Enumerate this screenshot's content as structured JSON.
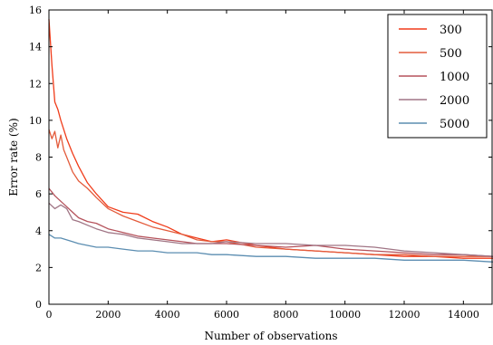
{
  "chart_data": {
    "type": "line",
    "xlabel": "Number of observations",
    "ylabel": "Error rate (%)",
    "xlim": [
      0,
      15000
    ],
    "ylim": [
      0,
      16
    ],
    "xticks": [
      0,
      2000,
      4000,
      6000,
      8000,
      10000,
      12000,
      14000
    ],
    "yticks": [
      0,
      2,
      4,
      6,
      8,
      10,
      12,
      14,
      16
    ],
    "grid": false,
    "legend_position": "top-right",
    "series": [
      {
        "name": "300",
        "color": "#f03c1a",
        "x": [
          0,
          100,
          200,
          300,
          400,
          600,
          800,
          1000,
          1300,
          1600,
          2000,
          2500,
          3000,
          3500,
          4000,
          4500,
          5000,
          5500,
          6000,
          7000,
          8000,
          9000,
          10000,
          11000,
          12000,
          13000,
          14000,
          15000
        ],
        "y": [
          15.5,
          13.0,
          11.0,
          10.6,
          10.0,
          9.0,
          8.2,
          7.5,
          6.6,
          6.0,
          5.3,
          5.0,
          4.9,
          4.5,
          4.2,
          3.8,
          3.6,
          3.4,
          3.5,
          3.2,
          3.0,
          2.9,
          2.8,
          2.7,
          2.6,
          2.6,
          2.5,
          2.5
        ]
      },
      {
        "name": "500",
        "color": "#e35b3b",
        "x": [
          0,
          100,
          200,
          300,
          400,
          500,
          600,
          800,
          1000,
          1300,
          1600,
          2000,
          2500,
          3000,
          3500,
          4000,
          4500,
          5000,
          5500,
          6000,
          7000,
          8000,
          9000,
          10000,
          11000,
          12000,
          13000,
          14000,
          15000
        ],
        "y": [
          9.5,
          9.0,
          9.4,
          8.5,
          9.2,
          8.4,
          8.0,
          7.2,
          6.7,
          6.3,
          5.8,
          5.2,
          4.8,
          4.5,
          4.2,
          4.0,
          3.8,
          3.5,
          3.4,
          3.4,
          3.1,
          3.0,
          2.9,
          2.8,
          2.7,
          2.7,
          2.6,
          2.6,
          2.6
        ]
      },
      {
        "name": "1000",
        "color": "#b5525b",
        "x": [
          0,
          200,
          400,
          600,
          800,
          1000,
          1300,
          1600,
          2000,
          2500,
          3000,
          3500,
          4000,
          4500,
          5000,
          5500,
          6000,
          7000,
          8000,
          9000,
          10000,
          11000,
          12000,
          13000,
          14000,
          15000
        ],
        "y": [
          6.3,
          5.9,
          5.6,
          5.3,
          5.0,
          4.7,
          4.5,
          4.4,
          4.1,
          3.9,
          3.7,
          3.6,
          3.5,
          3.4,
          3.3,
          3.3,
          3.3,
          3.2,
          3.1,
          3.2,
          3.0,
          2.9,
          2.8,
          2.7,
          2.7,
          2.6
        ]
      },
      {
        "name": "2000",
        "color": "#a07585",
        "x": [
          0,
          200,
          400,
          600,
          800,
          1000,
          1300,
          1600,
          2000,
          2500,
          3000,
          3500,
          4000,
          4500,
          5000,
          5500,
          6000,
          7000,
          8000,
          9000,
          10000,
          11000,
          12000,
          13000,
          14000,
          15000
        ],
        "y": [
          5.5,
          5.2,
          5.4,
          5.2,
          4.6,
          4.5,
          4.3,
          4.1,
          3.9,
          3.8,
          3.6,
          3.5,
          3.4,
          3.3,
          3.3,
          3.3,
          3.4,
          3.3,
          3.3,
          3.2,
          3.2,
          3.1,
          2.9,
          2.8,
          2.7,
          2.6
        ]
      },
      {
        "name": "5000",
        "color": "#5b8db1",
        "x": [
          0,
          200,
          400,
          600,
          800,
          1000,
          1300,
          1600,
          2000,
          2500,
          3000,
          3500,
          4000,
          4500,
          5000,
          5500,
          6000,
          7000,
          8000,
          9000,
          10000,
          11000,
          12000,
          13000,
          14000,
          15000
        ],
        "y": [
          3.8,
          3.6,
          3.6,
          3.5,
          3.4,
          3.3,
          3.2,
          3.1,
          3.1,
          3.0,
          2.9,
          2.9,
          2.8,
          2.8,
          2.8,
          2.7,
          2.7,
          2.6,
          2.6,
          2.5,
          2.5,
          2.5,
          2.4,
          2.4,
          2.4,
          2.3
        ]
      }
    ]
  }
}
